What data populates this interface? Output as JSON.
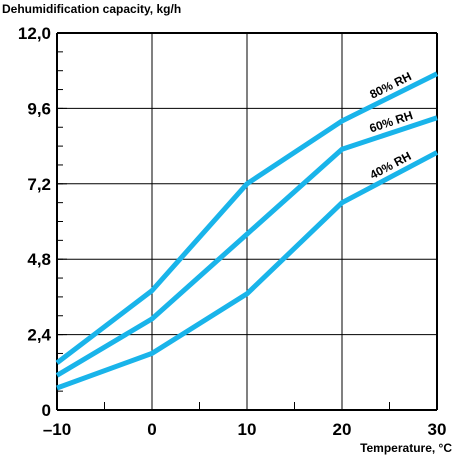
{
  "chart_data": {
    "type": "line",
    "ylabel": "Dehumidification capacity, kg/h",
    "xlabel": "Temperature, °C",
    "xlim": [
      -10,
      30
    ],
    "ylim": [
      0,
      12.0
    ],
    "x_ticks": [
      -10,
      0,
      10,
      20,
      30
    ],
    "x_tick_labels": [
      "–10",
      "0",
      "10",
      "20",
      "30"
    ],
    "y_ticks": [
      0,
      2.4,
      4.8,
      7.2,
      9.6,
      12.0
    ],
    "y_tick_labels": [
      "0",
      "2,4",
      "4,8",
      "7,2",
      "9,6",
      "12,0"
    ],
    "grid": true,
    "line_color": "#19b4ea",
    "series": [
      {
        "name": "80% RH",
        "x": [
          -10,
          0,
          10,
          20,
          30
        ],
        "y": [
          1.5,
          3.8,
          7.2,
          9.2,
          10.7
        ]
      },
      {
        "name": "60% RH",
        "x": [
          -10,
          0,
          10,
          20,
          30
        ],
        "y": [
          1.1,
          2.9,
          5.6,
          8.3,
          9.3
        ]
      },
      {
        "name": "40% RH",
        "x": [
          -10,
          0,
          10,
          20,
          30
        ],
        "y": [
          0.7,
          1.8,
          3.7,
          6.6,
          8.2
        ]
      }
    ]
  }
}
